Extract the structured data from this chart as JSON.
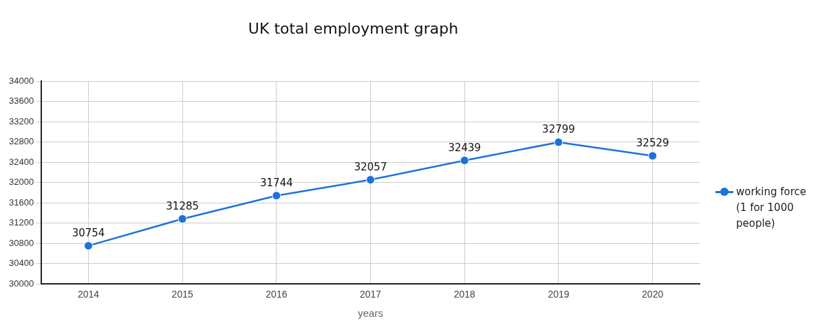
{
  "chart_data": {
    "type": "line",
    "title": "UK total employment graph",
    "xlabel": "years",
    "categories": [
      "2014",
      "2015",
      "2016",
      "2017",
      "2018",
      "2019",
      "2020"
    ],
    "series": [
      {
        "name": "working force (1 for 1000 people)",
        "color": "#1a73d9",
        "values": [
          30754,
          31285,
          31744,
          32057,
          32439,
          32799,
          32529
        ]
      }
    ],
    "ylim": [
      30000,
      34000
    ],
    "yticks": [
      30000,
      30400,
      30800,
      31200,
      31600,
      32000,
      32400,
      32800,
      33200,
      33600,
      34000
    ],
    "grid": true,
    "legend": "right",
    "marker": "circle",
    "line_style": "solid",
    "data_labels": true
  }
}
